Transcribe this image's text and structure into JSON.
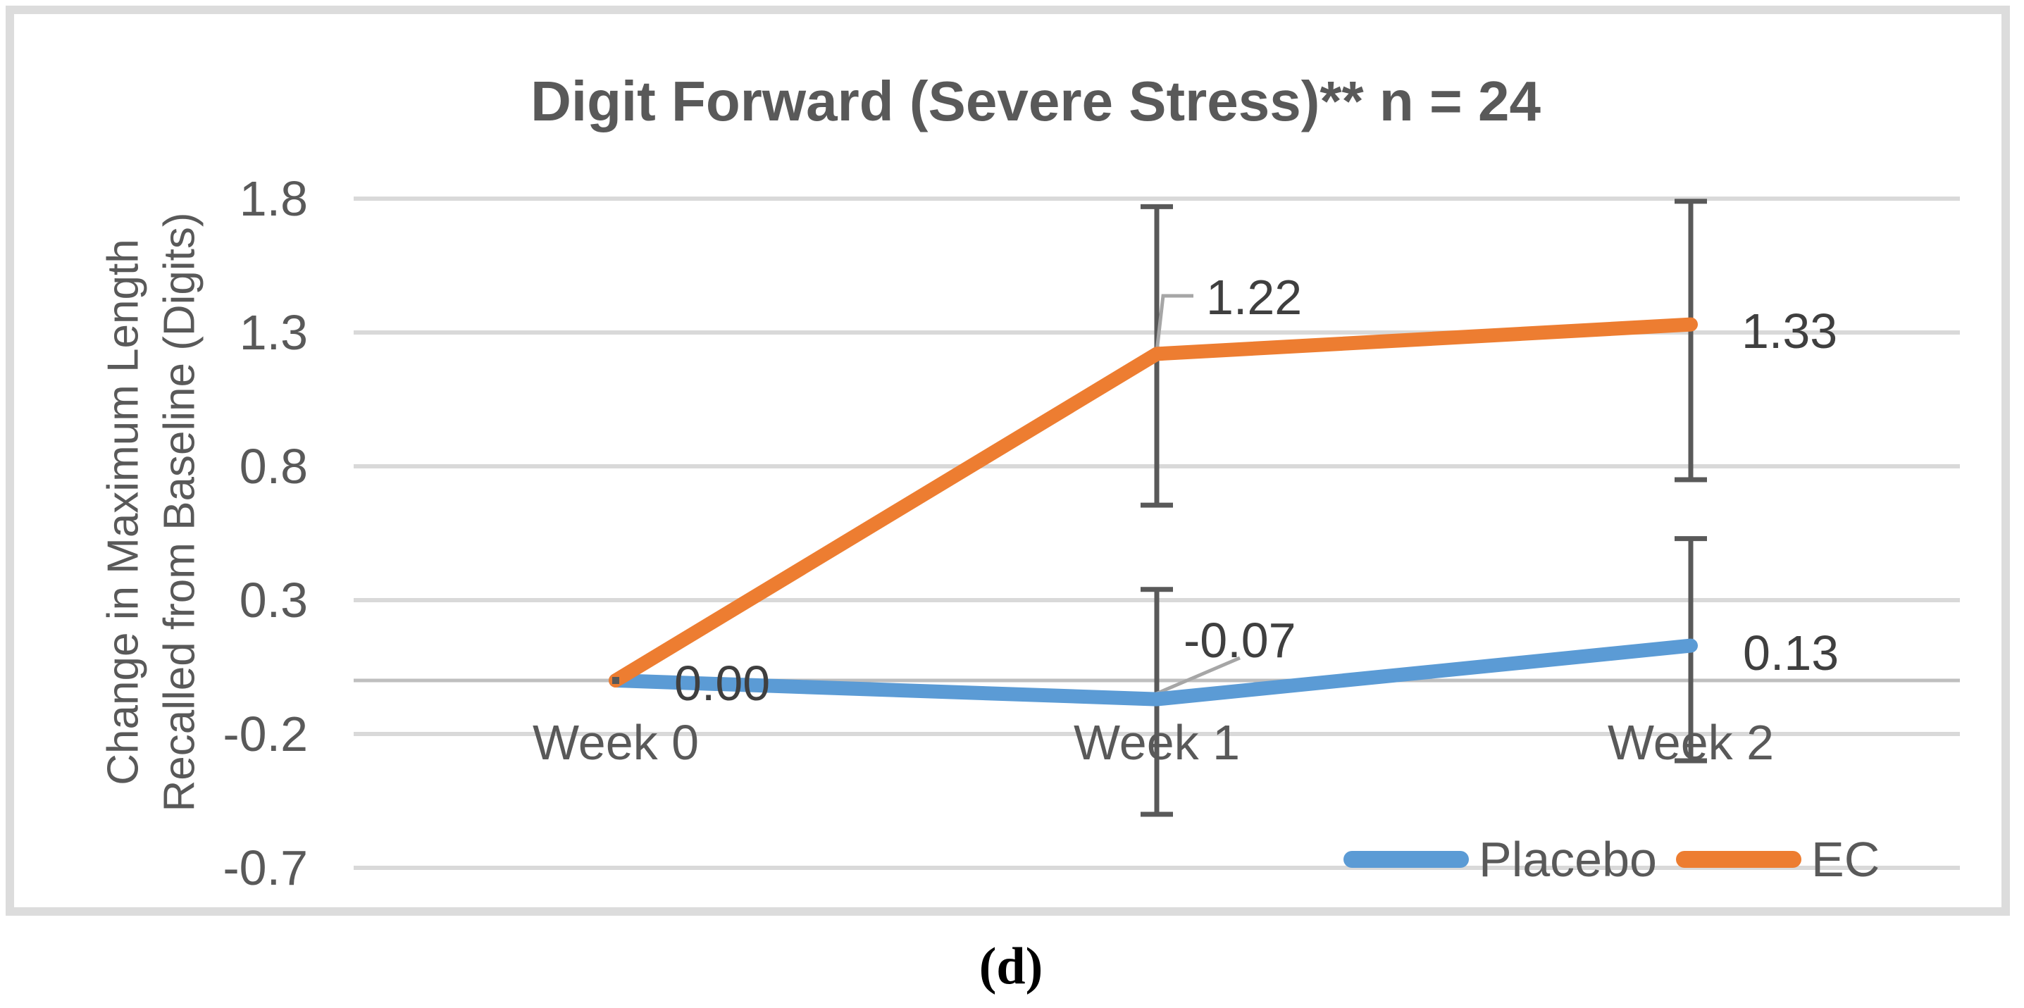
{
  "figure": {
    "caption": "(d)"
  },
  "chart": {
    "title": "Digit Forward (Severe Stress)** n = 24",
    "y_axis_title_line1": "Change in Maximum Length",
    "y_axis_title_line2": "Recalled from Baseline (Digits)"
  },
  "chart_data": {
    "type": "line",
    "title": "Digit Forward (Severe Stress)** n = 24",
    "categories": [
      "Week 0",
      "Week 1",
      "Week 2"
    ],
    "series": [
      {
        "name": "Placebo",
        "color": "#5B9BD5",
        "values": [
          0.0,
          -0.07,
          0.13
        ],
        "point_labels": [
          "0.00",
          "-0.07",
          "0.13"
        ],
        "error_bars_lo_hi": [
          [
            0.0,
            0.0
          ],
          [
            -0.5,
            0.34
          ],
          [
            -0.3,
            0.53
          ]
        ]
      },
      {
        "name": "EC",
        "color": "#ED7D31",
        "values": [
          0.0,
          1.22,
          1.33
        ],
        "point_labels": [
          null,
          "1.22",
          "1.33"
        ],
        "error_bars_lo_hi": [
          [
            0.0,
            0.0
          ],
          [
            0.655,
            1.77
          ],
          [
            0.75,
            1.79
          ]
        ]
      }
    ],
    "y_ticks": [
      "1.8",
      "1.3",
      "0.8",
      "0.3",
      "-0.2",
      "-0.7"
    ],
    "ylim": [
      -0.7,
      1.8
    ],
    "xlabel": "",
    "ylabel": "Change in Maximum Length Recalled from Baseline (Digits)",
    "axis_line_value": 0,
    "grid": true,
    "legend_position": "bottom-right",
    "legend_entries": [
      "Placebo",
      "EC"
    ]
  },
  "colors": {
    "placebo": "#5B9BD5",
    "ec": "#ED7D31",
    "gridline": "#D9D9D9",
    "axis_line": "#BFBFBF",
    "error_bar": "#595959",
    "leader_line": "#A6A6A6",
    "text_gray": "#595959",
    "data_label": "#3F3F3F",
    "panel_border": "#DCDCDC"
  }
}
